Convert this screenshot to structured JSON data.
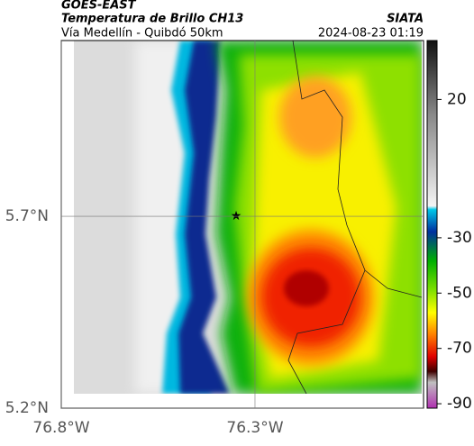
{
  "header": {
    "title": "GOES-EAST",
    "subtitle": "Temperatura de Brillo CH13",
    "location": "Vía Medellín - Quibdó 50km",
    "source": "SIATA",
    "datetime": "2024-08-23 01:19"
  },
  "map": {
    "xlim": [
      -76.8,
      -75.865
    ],
    "ylim": [
      5.2,
      6.158
    ],
    "xticks": [
      {
        "value": -76.8,
        "label": "76.8°W"
      },
      {
        "value": -76.3,
        "label": "76.3°W"
      }
    ],
    "yticks": [
      {
        "value": 5.7,
        "label": "5.7°N"
      },
      {
        "value": 5.2,
        "label": "5.2°N"
      }
    ]
  },
  "colorbar": {
    "lim": [
      -91.6,
      41.3
    ],
    "ticks": [
      20,
      -30,
      -50,
      -70,
      -90
    ]
  }
}
